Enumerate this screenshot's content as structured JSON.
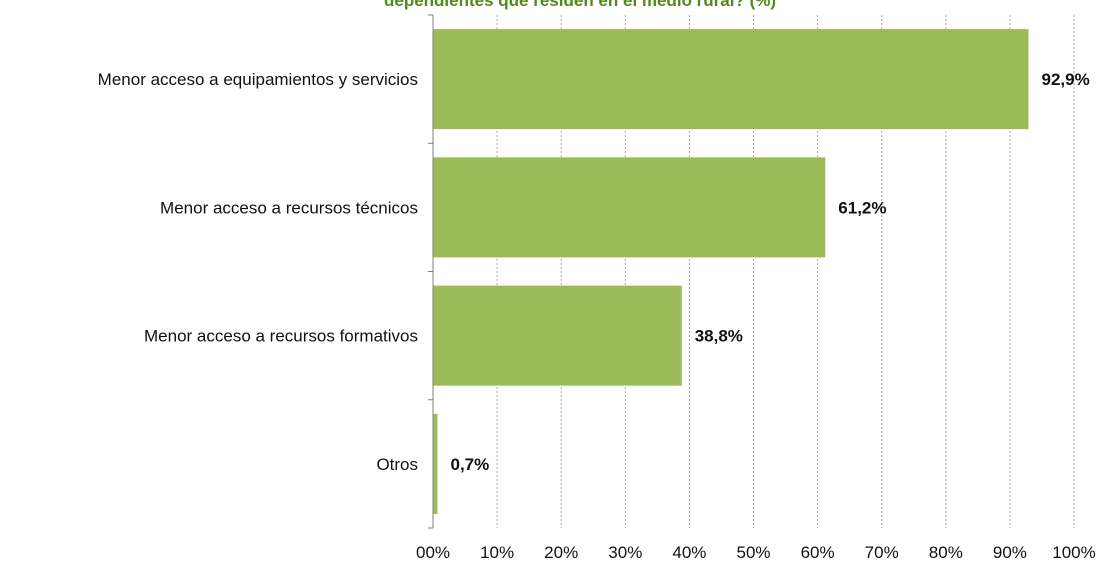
{
  "colors": {
    "bar": "#9bbb59",
    "title": "#4f8a1a",
    "grid": "#a6a6a6",
    "axis": "#808080"
  },
  "chart_data": {
    "type": "bar",
    "orientation": "horizontal",
    "title": "dependientes que residen en el medio rural? (%)",
    "categories": [
      "Menor acceso a equipamientos y servicios",
      "Menor acceso a recursos técnicos",
      "Menor acceso a recursos formativos",
      "Otros"
    ],
    "values": [
      92.9,
      61.2,
      38.8,
      0.7
    ],
    "value_labels": [
      "92,9%",
      "61,2%",
      "38,8%",
      "0,7%"
    ],
    "xlim": [
      0,
      100
    ],
    "xticks": [
      0,
      10,
      20,
      30,
      40,
      50,
      60,
      70,
      80,
      90,
      100
    ],
    "xtick_labels": [
      "00%",
      "10%",
      "20%",
      "30%",
      "40%",
      "50%",
      "60%",
      "70%",
      "80%",
      "90%",
      "100%"
    ],
    "grid": "vertical-dashed",
    "legend": "none"
  }
}
